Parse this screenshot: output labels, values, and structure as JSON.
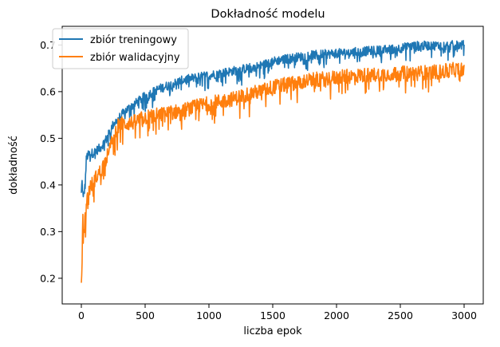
{
  "chart_data": {
    "type": "line",
    "title": "Dokładność modelu",
    "xlabel": "liczba epok",
    "ylabel": "dokładność",
    "xlim": [
      -150,
      3150
    ],
    "ylim": [
      0.145,
      0.74
    ],
    "xticks": [
      0,
      500,
      1000,
      1500,
      2000,
      2500,
      3000
    ],
    "yticks": [
      0.2,
      0.3,
      0.4,
      0.5,
      0.6,
      0.7
    ],
    "grid": false,
    "legend": "top-left",
    "series": [
      {
        "name": "zbiór treningowy",
        "color": "#1f77b4",
        "anchors": {
          "x": [
            0,
            5,
            15,
            30,
            40,
            60,
            100,
            150,
            200,
            250,
            300,
            350,
            400,
            500,
            600,
            700,
            800,
            1000,
            1200,
            1400,
            1500,
            1600,
            1800,
            2000,
            2200,
            2400,
            2500,
            2600,
            2800,
            3000
          ],
          "y": [
            0.38,
            0.41,
            0.37,
            0.4,
            0.46,
            0.465,
            0.47,
            0.48,
            0.5,
            0.53,
            0.545,
            0.56,
            0.57,
            0.59,
            0.605,
            0.615,
            0.625,
            0.635,
            0.645,
            0.655,
            0.665,
            0.67,
            0.678,
            0.682,
            0.686,
            0.69,
            0.693,
            0.698,
            0.699,
            0.7
          ]
        },
        "noise": 0.01
      },
      {
        "name": "zbiór walidacyjny",
        "color": "#ff7f0e",
        "anchors": {
          "x": [
            0,
            5,
            10,
            20,
            40,
            60,
            80,
            100,
            150,
            200,
            250,
            280,
            300,
            400,
            500,
            600,
            700,
            800,
            1000,
            1200,
            1300,
            1400,
            1500,
            1600,
            1800,
            2000,
            2200,
            2400,
            2600,
            2800,
            3000
          ],
          "y": [
            0.175,
            0.22,
            0.33,
            0.3,
            0.36,
            0.39,
            0.4,
            0.41,
            0.43,
            0.46,
            0.5,
            0.525,
            0.53,
            0.533,
            0.545,
            0.55,
            0.555,
            0.56,
            0.575,
            0.585,
            0.595,
            0.6,
            0.61,
            0.615,
            0.625,
            0.63,
            0.635,
            0.638,
            0.64,
            0.642,
            0.65
          ]
        },
        "noise": 0.016
      }
    ]
  }
}
